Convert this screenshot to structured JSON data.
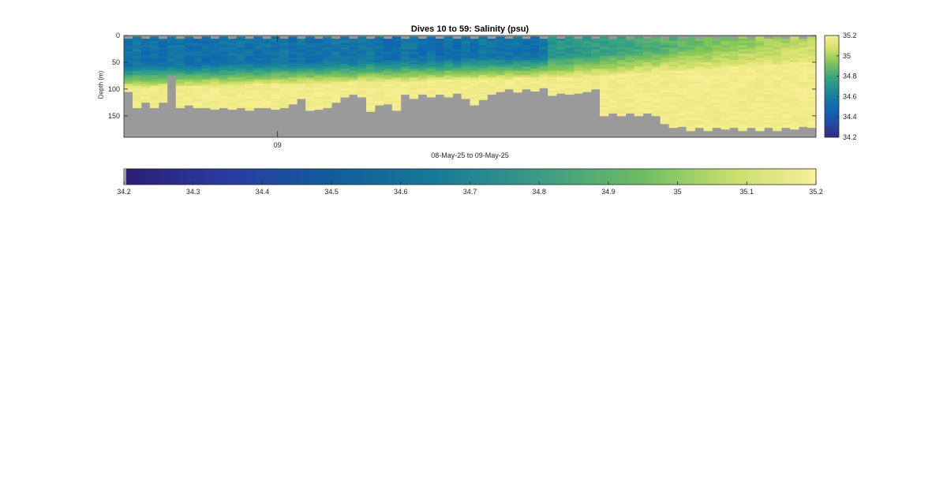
{
  "chart_data": [
    {
      "type": "heatmap",
      "title": "Dives 10 to 59: Salinity (psu)",
      "xlabel": "08-May-25 to 09-May-25",
      "ylabel": "Depth (m)",
      "x_tick_labels": [
        "09"
      ],
      "y_tick_labels": [
        "0",
        "50",
        "100",
        "150"
      ],
      "ylim": [
        0,
        190
      ],
      "y_reversed": true,
      "dives": [
        10,
        59
      ],
      "colormap": "parula-like (dark blue → teal → green → yellow)",
      "nodata_color": "#9a9a9a",
      "clim": [
        34.2,
        35.2
      ],
      "colorbar_vertical_ticks": [
        "34.2",
        "34.4",
        "34.6",
        "34.8",
        "35",
        "35.2"
      ],
      "description_values": {
        "surface_layer_salinity_first_half": 34.5,
        "surface_layer_salinity_second_half": 35.0,
        "deep_salinity": 35.2,
        "halocline_depth_m_start": 60,
        "halocline_depth_m_end": 20
      },
      "bottom_depth_m": [
        105,
        135,
        125,
        135,
        125,
        75,
        135,
        130,
        135,
        135,
        138,
        135,
        138,
        135,
        140,
        135,
        135,
        138,
        135,
        128,
        118,
        140,
        138,
        135,
        125,
        115,
        110,
        115,
        142,
        130,
        128,
        140,
        110,
        118,
        110,
        115,
        110,
        115,
        108,
        118,
        130,
        120,
        110,
        105,
        100,
        106,
        100,
        104,
        98,
        112,
        108,
        110,
        108,
        105,
        100,
        150,
        145,
        150,
        145,
        150,
        145,
        150,
        165,
        172,
        170,
        178,
        172,
        178,
        172,
        175,
        172,
        178,
        172,
        178,
        172,
        178,
        172,
        175,
        170,
        172
      ]
    },
    {
      "type": "heatmap",
      "title": "",
      "x_tick_labels": [
        "34.2",
        "34.3",
        "34.4",
        "34.5",
        "34.6",
        "34.7",
        "34.8",
        "34.9",
        "35",
        "35.1",
        "35.2"
      ],
      "xlim": [
        34.2,
        35.2
      ],
      "colormap": "parula-like horizontal colorbar"
    }
  ]
}
